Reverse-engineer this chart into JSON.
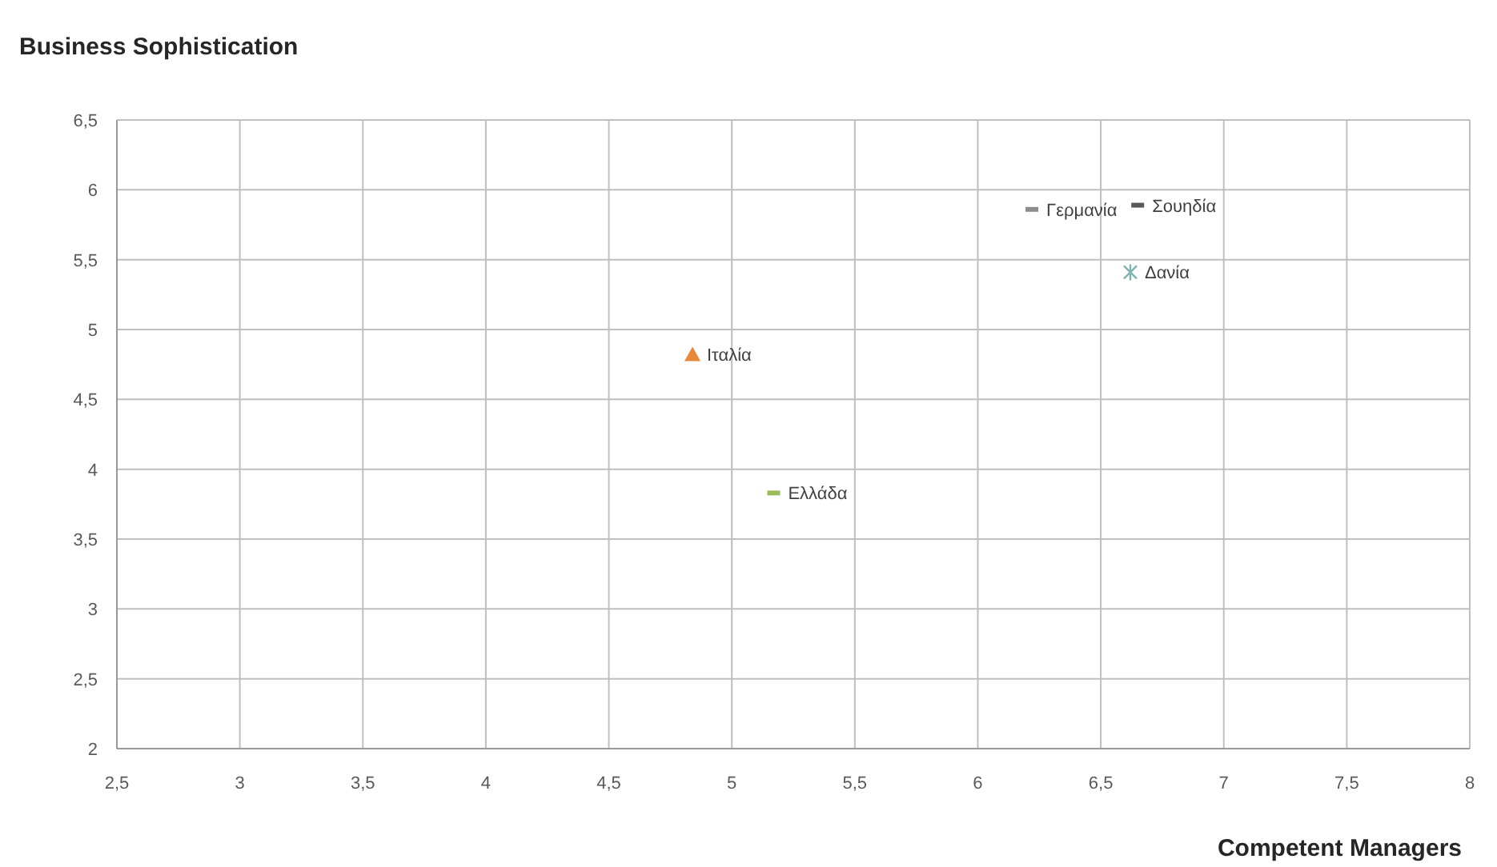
{
  "chart_data": {
    "type": "scatter",
    "ylabel": "Business Sophistication",
    "xlabel": "Competent Managers",
    "xlim": [
      2.5,
      8
    ],
    "ylim": [
      2,
      6.5
    ],
    "xticks": [
      {
        "value": 2.5,
        "label": "2,5"
      },
      3,
      {
        "value": 3.5,
        "label": "3,5"
      },
      4,
      {
        "value": 4.5,
        "label": "4,5"
      },
      5,
      {
        "value": 5.5,
        "label": "5,5"
      },
      6,
      {
        "value": 6.5,
        "label": "6,5"
      },
      7,
      {
        "value": 7.5,
        "label": "7,5"
      },
      8
    ],
    "yticks": [
      2,
      {
        "value": 2.5,
        "label": "2,5"
      },
      3,
      {
        "value": 3.5,
        "label": "3,5"
      },
      4,
      {
        "value": 4.5,
        "label": "4,5"
      },
      5,
      {
        "value": 5.5,
        "label": "5,5"
      },
      6,
      {
        "value": 6.5,
        "label": "6,5"
      }
    ],
    "grid": true,
    "series": [
      {
        "name": "Γερμανία",
        "color": "#8c8c8c",
        "marker": "square",
        "x": [
          6.22
        ],
        "values": [
          5.86
        ]
      },
      {
        "name": "Σουηδία",
        "color": "#595959",
        "marker": "square",
        "x": [
          6.65
        ],
        "values": [
          5.89
        ]
      },
      {
        "name": "Δανία",
        "color": "#7fb3b0",
        "marker": "cross",
        "x": [
          6.62
        ],
        "values": [
          5.41
        ]
      },
      {
        "name": "Ιταλία",
        "color": "#e8883a",
        "marker": "triangle",
        "x": [
          4.84
        ],
        "values": [
          4.82
        ]
      },
      {
        "name": "Ελλάδα",
        "color": "#9bbb59",
        "marker": "square",
        "x": [
          5.17
        ],
        "values": [
          3.83
        ]
      }
    ]
  }
}
